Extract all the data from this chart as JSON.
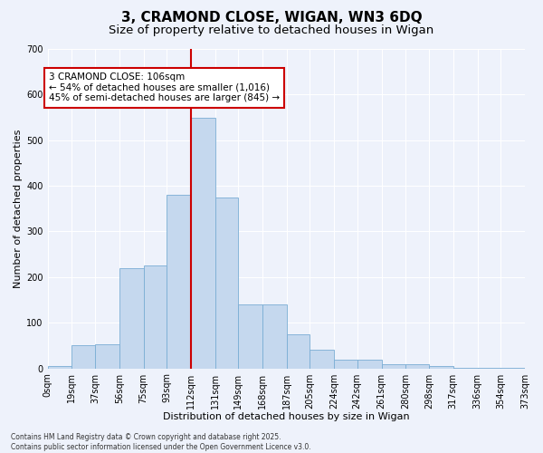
{
  "title_line1": "3, CRAMOND CLOSE, WIGAN, WN3 6DQ",
  "title_line2": "Size of property relative to detached houses in Wigan",
  "xlabel": "Distribution of detached houses by size in Wigan",
  "ylabel": "Number of detached properties",
  "bar_color": "#c5d8ee",
  "bar_edge_color": "#7aadd4",
  "vline_color": "#cc0000",
  "vline_x": 112,
  "bin_edges": [
    0,
    19,
    37,
    56,
    75,
    93,
    112,
    131,
    149,
    168,
    187,
    205,
    224,
    242,
    261,
    280,
    298,
    317,
    336,
    354,
    373
  ],
  "bin_labels": [
    "0sqm",
    "19sqm",
    "37sqm",
    "56sqm",
    "75sqm",
    "93sqm",
    "112sqm",
    "131sqm",
    "149sqm",
    "168sqm",
    "187sqm",
    "205sqm",
    "224sqm",
    "242sqm",
    "261sqm",
    "280sqm",
    "298sqm",
    "317sqm",
    "336sqm",
    "354sqm",
    "373sqm"
  ],
  "bar_heights": [
    5,
    50,
    52,
    220,
    225,
    380,
    550,
    375,
    140,
    140,
    75,
    40,
    20,
    20,
    10,
    10,
    5,
    2,
    2,
    2,
    0
  ],
  "ylim": [
    0,
    700
  ],
  "yticks": [
    0,
    100,
    200,
    300,
    400,
    500,
    600,
    700
  ],
  "annotation_text": "3 CRAMOND CLOSE: 106sqm\n← 54% of detached houses are smaller (1,016)\n45% of semi-detached houses are larger (845) →",
  "annotation_box_color": "#ffffff",
  "annotation_box_edge": "#cc0000",
  "footer_text": "Contains HM Land Registry data © Crown copyright and database right 2025.\nContains public sector information licensed under the Open Government Licence v3.0.",
  "bg_color": "#eef2fb",
  "grid_color": "#ffffff",
  "title_fontsize": 11,
  "subtitle_fontsize": 9.5,
  "axis_label_fontsize": 8,
  "tick_fontsize": 7,
  "annotation_fontsize": 7.5
}
